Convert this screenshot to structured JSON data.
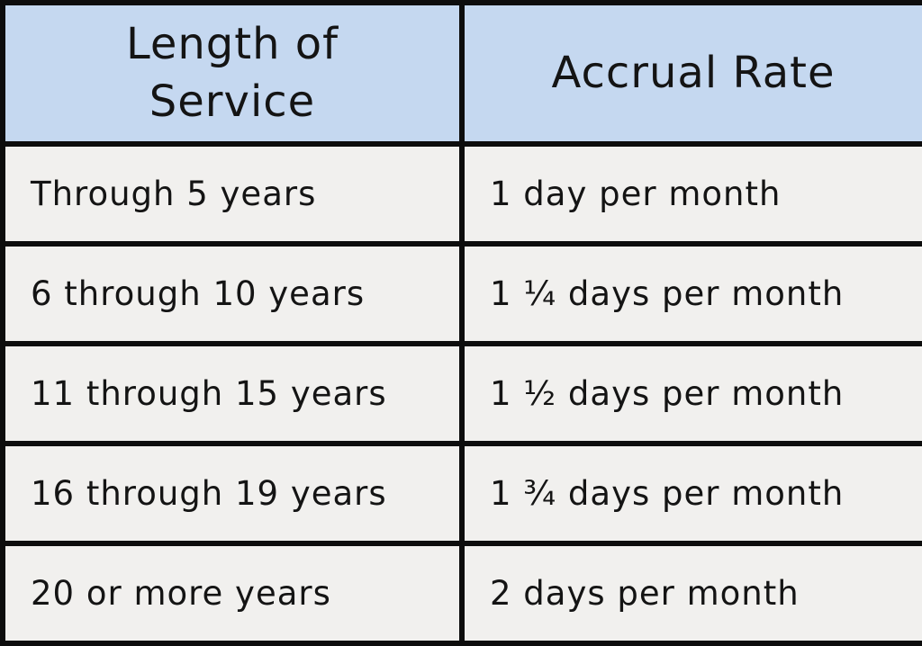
{
  "chart_data": {
    "type": "table",
    "title": "",
    "columns": [
      "Length of Service",
      "Accrual Rate"
    ],
    "rows": [
      [
        "Through 5 years",
        "1 day per month"
      ],
      [
        "6 through 10 years",
        "1 ¼ days per month"
      ],
      [
        "11 through 15 years",
        "1 ½ days per month"
      ],
      [
        "16 through 19 years",
        "1 ¾ days per month"
      ],
      [
        "20 or more years",
        "2 days per month"
      ]
    ],
    "layout": {
      "header_position": "top",
      "grid": "on"
    }
  },
  "colors": {
    "header_bg": "#c5d8f0",
    "row_bg": "#f1f0ee",
    "border": "#0d0d0d",
    "text": "#141414"
  }
}
